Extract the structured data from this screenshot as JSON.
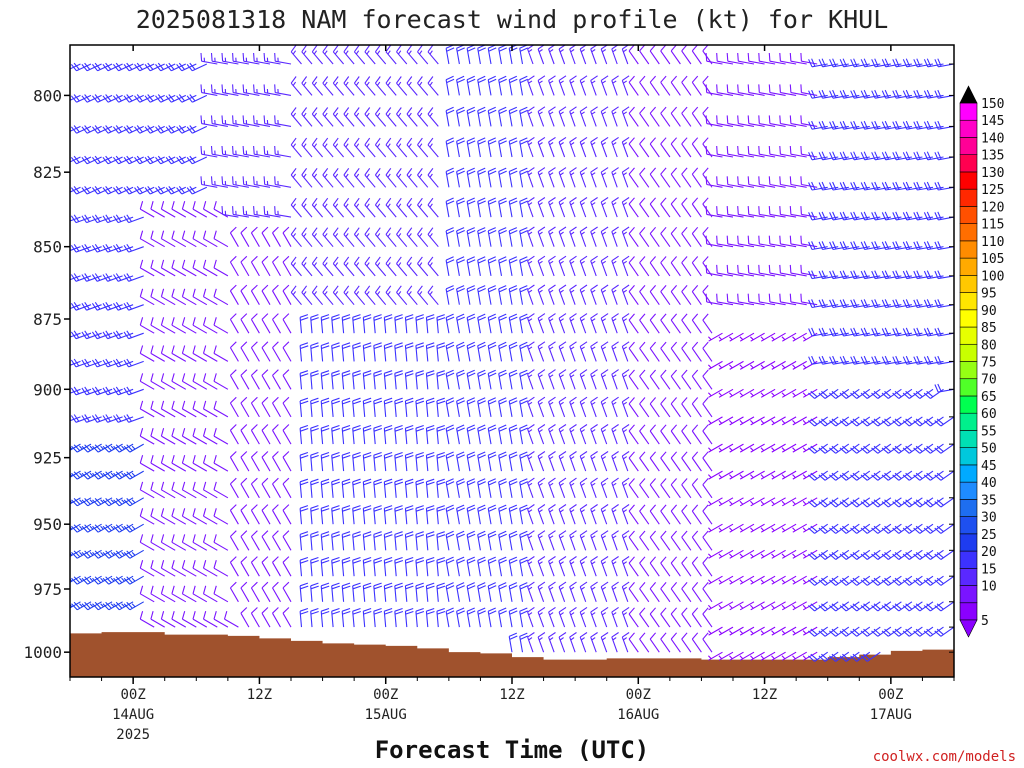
{
  "chart_data": {
    "type": "wind-barb-time-height",
    "title": "2025081318 NAM forecast wind profile (kt) for KHUL",
    "xlabel": "Forecast Time (UTC)",
    "credit": "coolwx.com/models",
    "x_ticks": [
      {
        "h": 6,
        "l1": "00Z",
        "l2": "14AUG",
        "l3": "2025"
      },
      {
        "h": 18,
        "l1": "12Z",
        "l2": "",
        "l3": ""
      },
      {
        "h": 30,
        "l1": "00Z",
        "l2": "15AUG",
        "l3": ""
      },
      {
        "h": 42,
        "l1": "12Z",
        "l2": "",
        "l3": ""
      },
      {
        "h": 54,
        "l1": "00Z",
        "l2": "16AUG",
        "l3": ""
      },
      {
        "h": 66,
        "l1": "12Z",
        "l2": "",
        "l3": ""
      },
      {
        "h": 78,
        "l1": "00Z",
        "l2": "17AUG",
        "l3": ""
      }
    ],
    "x_range_hours_after_init": [
      0,
      84
    ],
    "y_ticks": [
      800,
      825,
      850,
      875,
      900,
      925,
      950,
      975,
      1000
    ],
    "y_range_hPa": [
      1010,
      784
    ],
    "pressure_levels": [
      790,
      800,
      810,
      820,
      830,
      840,
      850,
      860,
      870,
      880,
      890,
      900,
      910,
      920,
      930,
      940,
      950,
      960,
      970,
      980,
      990,
      1000
    ],
    "surface_pressure": [
      {
        "h": 0,
        "p": 992.5
      },
      {
        "h": 3,
        "p": 992
      },
      {
        "h": 6,
        "p": 992
      },
      {
        "h": 9,
        "p": 993
      },
      {
        "h": 12,
        "p": 993
      },
      {
        "h": 15,
        "p": 993.5
      },
      {
        "h": 18,
        "p": 994.5
      },
      {
        "h": 21,
        "p": 995.5
      },
      {
        "h": 24,
        "p": 996.5
      },
      {
        "h": 27,
        "p": 997
      },
      {
        "h": 30,
        "p": 997.5
      },
      {
        "h": 33,
        "p": 998.5
      },
      {
        "h": 36,
        "p": 1000
      },
      {
        "h": 39,
        "p": 1000.5
      },
      {
        "h": 42,
        "p": 1002
      },
      {
        "h": 45,
        "p": 1003
      },
      {
        "h": 48,
        "p": 1003
      },
      {
        "h": 51,
        "p": 1002.5
      },
      {
        "h": 54,
        "p": 1002.5
      },
      {
        "h": 57,
        "p": 1002.5
      },
      {
        "h": 60,
        "p": 1003
      },
      {
        "h": 63,
        "p": 1003
      },
      {
        "h": 66,
        "p": 1003
      },
      {
        "h": 69,
        "p": 1003
      },
      {
        "h": 72,
        "p": 1002
      },
      {
        "h": 75,
        "p": 1001
      },
      {
        "h": 78,
        "p": 999.5
      },
      {
        "h": 81,
        "p": 999
      },
      {
        "h": 84,
        "p": 998
      }
    ],
    "wind_segments": [
      {
        "h_from": 0,
        "h_to": 14,
        "p_from": 790,
        "p_to": 840,
        "dir": 245,
        "speed": 20
      },
      {
        "h_from": 0,
        "h_to": 8,
        "p_from": 840,
        "p_to": 920,
        "dir": 250,
        "speed": 20
      },
      {
        "h_from": 0,
        "h_to": 8,
        "p_from": 920,
        "p_to": 980,
        "dir": 240,
        "speed": 25
      },
      {
        "h_from": 8,
        "h_to": 16,
        "p_from": 840,
        "p_to": 990,
        "dir": 300,
        "speed": 10
      },
      {
        "h_from": 14,
        "h_to": 22,
        "p_from": 790,
        "p_to": 850,
        "dir": 280,
        "speed": 15
      },
      {
        "h_from": 16,
        "h_to": 22,
        "p_from": 850,
        "p_to": 990,
        "dir": 330,
        "speed": 10
      },
      {
        "h_from": 22,
        "h_to": 36,
        "p_from": 790,
        "p_to": 880,
        "dir": 320,
        "speed": 15
      },
      {
        "h_from": 22,
        "h_to": 36,
        "p_from": 880,
        "p_to": 1000,
        "dir": 355,
        "speed": 20
      },
      {
        "h_from": 36,
        "h_to": 44,
        "p_from": 790,
        "p_to": 1000,
        "dir": 350,
        "speed": 20
      },
      {
        "h_from": 44,
        "h_to": 54,
        "p_from": 790,
        "p_to": 1003,
        "dir": 340,
        "speed": 15
      },
      {
        "h_from": 54,
        "h_to": 62,
        "p_from": 790,
        "p_to": 1003,
        "dir": 325,
        "speed": 10
      },
      {
        "h_from": 62,
        "h_to": 72,
        "p_from": 790,
        "p_to": 880,
        "dir": 280,
        "speed": 10
      },
      {
        "h_from": 62,
        "h_to": 72,
        "p_from": 880,
        "p_to": 1003,
        "dir": 240,
        "speed": 5
      },
      {
        "h_from": 72,
        "h_to": 84,
        "p_from": 790,
        "p_to": 900,
        "dir": 260,
        "speed": 20
      },
      {
        "h_from": 72,
        "h_to": 84,
        "p_from": 900,
        "p_to": 1003,
        "dir": 235,
        "speed": 20
      }
    ],
    "wind_times_hours": [
      0,
      1,
      2,
      3,
      4,
      5,
      6,
      7,
      8,
      9,
      10,
      11,
      12,
      13,
      14,
      15,
      16,
      17,
      18,
      19,
      20,
      21,
      22,
      23,
      24,
      25,
      26,
      27,
      28,
      29,
      30,
      31,
      32,
      33,
      34,
      35,
      36,
      37,
      38,
      39,
      40,
      41,
      42,
      43,
      44,
      45,
      46,
      47,
      48,
      49,
      50,
      51,
      52,
      53,
      54,
      55,
      56,
      57,
      58,
      59,
      60,
      61,
      62,
      63,
      64,
      65,
      66,
      67,
      68,
      69,
      70,
      71,
      72,
      73,
      74,
      75,
      76,
      77,
      78,
      79,
      80,
      81,
      82,
      83,
      84
    ],
    "colorbar": {
      "levels": [
        5,
        10,
        15,
        20,
        25,
        30,
        35,
        40,
        45,
        50,
        55,
        60,
        65,
        70,
        75,
        80,
        85,
        90,
        95,
        100,
        105,
        110,
        115,
        120,
        125,
        130,
        135,
        140,
        145,
        150
      ],
      "colors": [
        "#8a00ff",
        "#7a14ff",
        "#5a28ff",
        "#3c32ff",
        "#1e3cf0",
        "#1e50f0",
        "#1e6ef0",
        "#1e8cff",
        "#00aaff",
        "#00c8dc",
        "#00e0b4",
        "#00f08c",
        "#00ff50",
        "#50ff28",
        "#96ff14",
        "#c8ff00",
        "#e6ff00",
        "#ffff00",
        "#ffe600",
        "#ffc800",
        "#ffaa00",
        "#ff8c00",
        "#ff6e00",
        "#ff5000",
        "#ff2800",
        "#ff0000",
        "#ff0050",
        "#ff0096",
        "#ff00c8",
        "#ff00ff"
      ],
      "top_arrow_color": "#000000"
    },
    "colors": {
      "ground": "#a0522d",
      "frame": "#000000"
    }
  }
}
